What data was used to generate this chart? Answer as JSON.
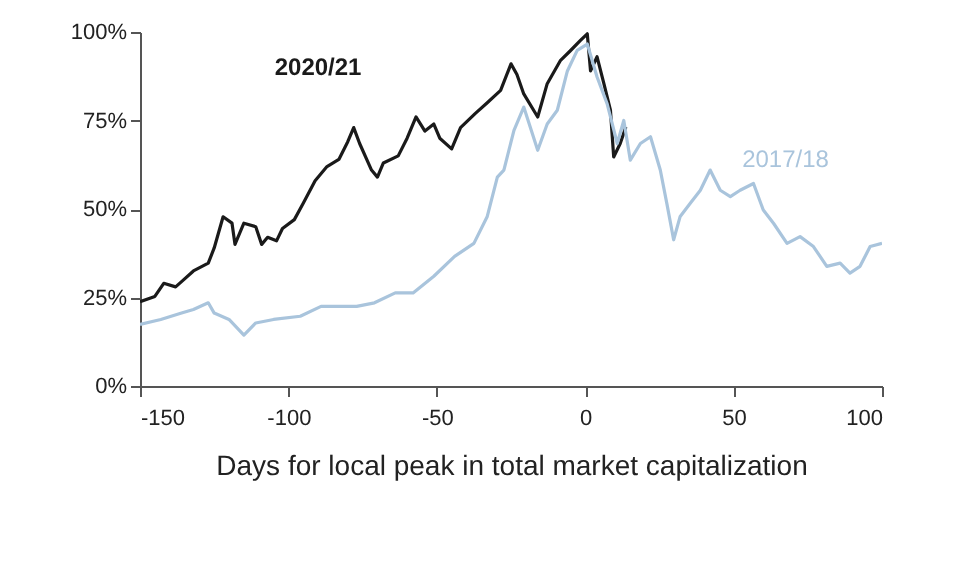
{
  "chart_data": {
    "type": "line",
    "xlabel": "Days for local peak in total market capitalization",
    "xlim": [
      -150,
      100
    ],
    "xticks": [
      -150,
      -100,
      -50,
      0,
      50,
      100
    ],
    "ylim": [
      0,
      100
    ],
    "yticks": [
      {
        "value": 0,
        "label": "0%"
      },
      {
        "value": 25,
        "label": "25%"
      },
      {
        "value": 50,
        "label": "50%"
      },
      {
        "value": 75,
        "label": "75%"
      },
      {
        "value": 100,
        "label": "100%"
      }
    ],
    "grid": false,
    "marker": "none",
    "line_style": "solid",
    "series": [
      {
        "name": "2020/21",
        "color": "#1a1a1a",
        "x": [
          -150,
          -145,
          -142,
          -138,
          -136,
          -132,
          -127,
          -125,
          -122,
          -119,
          -118,
          -115,
          -111,
          -109,
          -107,
          -104,
          -102,
          -98,
          -95,
          -91,
          -87,
          -83,
          -80,
          -78,
          -76,
          -72,
          -70,
          -68,
          -63,
          -60,
          -57,
          -54,
          -51,
          -49,
          -45,
          -42,
          -37,
          -33,
          -28.5,
          -25,
          -23,
          -20.7,
          -16,
          -12.8,
          -8.3,
          -5,
          -1.6,
          0.7,
          1.8,
          4,
          6.3,
          8.5,
          9.6,
          11.8,
          13.7
        ],
        "values": [
          23.8,
          25.3,
          29,
          28,
          29.5,
          32.5,
          34.7,
          39,
          47.8,
          46,
          40,
          46,
          45,
          40,
          42,
          41,
          44.5,
          47,
          51.6,
          58,
          62,
          64,
          69,
          73,
          68.5,
          61,
          59,
          63,
          65,
          70,
          76,
          72,
          74,
          70,
          67,
          73,
          77,
          80,
          83.5,
          91,
          88,
          82.5,
          76,
          85.4,
          92,
          94.7,
          97.6,
          99.5,
          89,
          93,
          85.4,
          77.9,
          64.7,
          68.5,
          73.2
        ]
      },
      {
        "name": "2017/18",
        "color": "#a9c4dc",
        "x": [
          -150,
          -143,
          -136,
          -132,
          -127,
          -125,
          -120,
          -115,
          -111,
          -105,
          -96,
          -89,
          -82,
          -77,
          -71,
          -64,
          -58,
          -51,
          -44,
          -37.5,
          -33,
          -29.6,
          -27.4,
          -24,
          -20.7,
          -16,
          -12.8,
          -9.4,
          -6,
          -2.7,
          0.7,
          4,
          7.4,
          10.8,
          13,
          15.2,
          18.6,
          22,
          25.3,
          27.5,
          29.8,
          32,
          35.4,
          38.8,
          42.1,
          45.5,
          48.9,
          52.2,
          56.7,
          60,
          63.5,
          68,
          72.4,
          76.9,
          81.4,
          85.9,
          89.2,
          92.6,
          96,
          100
        ],
        "values": [
          17.4,
          18.8,
          20.6,
          21.6,
          23.5,
          20.6,
          18.8,
          14.4,
          17.8,
          18.8,
          19.7,
          22.5,
          22.5,
          22.5,
          23.5,
          26.3,
          26.3,
          31,
          36.6,
          40.3,
          47.9,
          59,
          61,
          72.2,
          78.8,
          66.6,
          74,
          77.9,
          89,
          94.8,
          96.6,
          87.3,
          79.7,
          68.5,
          75,
          63.8,
          68.5,
          70.4,
          61,
          51.6,
          41.3,
          47.9,
          51.6,
          55.3,
          61,
          55.3,
          53.5,
          55.3,
          57.2,
          49.7,
          45.9,
          40.3,
          42.2,
          39.4,
          33.8,
          34.7,
          31.9,
          33.8,
          39.4,
          40.3
        ]
      }
    ]
  }
}
